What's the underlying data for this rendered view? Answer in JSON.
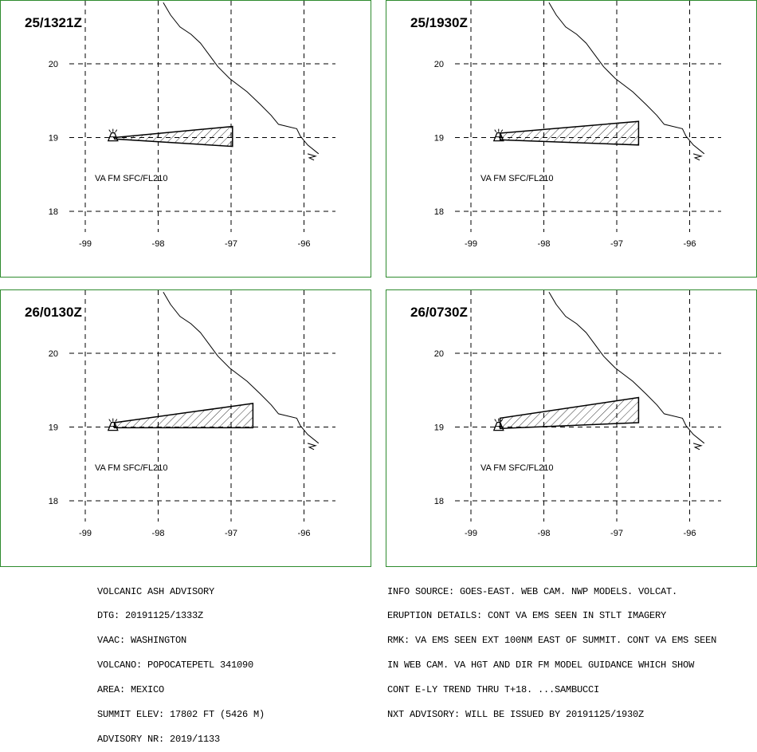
{
  "panels": [
    {
      "time": "25/1321Z",
      "va_label": "VA FM SFC/FL210",
      "plume": [
        [
          -98.6,
          19.0
        ],
        [
          -96.98,
          19.15
        ],
        [
          -96.98,
          18.88
        ],
        [
          -98.6,
          18.98
        ]
      ]
    },
    {
      "time": "25/1930Z",
      "va_label": "VA FM SFC/FL210",
      "plume": [
        [
          -98.6,
          19.06
        ],
        [
          -96.7,
          19.22
        ],
        [
          -96.7,
          18.9
        ],
        [
          -98.6,
          18.97
        ]
      ]
    },
    {
      "time": "26/0130Z",
      "va_label": "VA FM SFC/FL210",
      "plume": [
        [
          -98.6,
          19.06
        ],
        [
          -96.7,
          19.32
        ],
        [
          -96.7,
          18.99
        ],
        [
          -98.6,
          18.99
        ]
      ]
    },
    {
      "time": "26/0730Z",
      "va_label": "VA FM SFC/FL210",
      "plume": [
        [
          -98.6,
          19.12
        ],
        [
          -96.7,
          19.4
        ],
        [
          -96.7,
          19.06
        ],
        [
          -98.6,
          18.98
        ]
      ]
    }
  ],
  "map": {
    "lon_ticks": [
      "-99",
      "-98",
      "-97",
      "-96"
    ],
    "lat_ticks": [
      "20",
      "19",
      "18"
    ],
    "volcano": {
      "lon": -98.62,
      "lat": 19.02,
      "icon": "volcano-icon"
    },
    "frame_color": "#2e8b2e",
    "plume_color": "#000000"
  },
  "advisory_left": [
    "VOLCANIC ASH ADVISORY",
    "DTG: 20191125/1333Z",
    "VAAC: WASHINGTON",
    "VOLCANO: POPOCATEPETL 341090",
    "AREA: MEXICO",
    "SUMMIT ELEV: 17802 FT (5426 M)",
    "ADVISORY NR: 2019/1133"
  ],
  "advisory_right": [
    "INFO SOURCE: GOES-EAST. WEB CAM. NWP MODELS. VOLCAT.",
    "ERUPTION DETAILS: CONT VA EMS SEEN IN STLT IMAGERY",
    "RMK: VA EMS SEEN EXT 100NM EAST OF SUMMIT. CONT VA EMS SEEN",
    "IN WEB CAM. VA HGT AND DIR FM MODEL GUIDANCE WHICH SHOW",
    "CONT E-LY TREND THRU T+18. ...SAMBUCCI",
    "NXT ADVISORY: WILL BE ISSUED BY 20191125/1930Z"
  ]
}
